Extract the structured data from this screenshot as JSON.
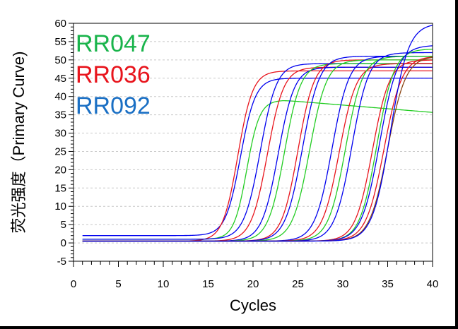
{
  "chart_data": {
    "type": "line",
    "xlabel": "Cycles",
    "ylabel": "荧光强度（Primary Curve)",
    "xlim": [
      0,
      40
    ],
    "ylim": [
      -5,
      60
    ],
    "xticks": [
      0,
      5,
      10,
      15,
      20,
      25,
      30,
      35,
      40
    ],
    "yticks": [
      -5,
      0,
      5,
      10,
      15,
      20,
      25,
      30,
      35,
      40,
      45,
      50,
      55,
      60
    ],
    "grid": "horizontal-dashed",
    "legend": {
      "placement": "top-left",
      "entries": [
        {
          "label": "RR047",
          "color": "#19b44b"
        },
        {
          "label": "RR036",
          "color": "#e8141c"
        },
        {
          "label": "RR092",
          "color": "#1a6fc4"
        }
      ]
    },
    "series": [
      {
        "color": "#0000ee",
        "baseline": 2.0,
        "plateau": 45,
        "midpoint": 18.6,
        "slope": 1.2,
        "drift": 0.0
      },
      {
        "color": "#e8141c",
        "baseline": 0.5,
        "plateau": 47,
        "midpoint": 18.3,
        "slope": 1.2,
        "drift": 0.0
      },
      {
        "color": "#22cc22",
        "baseline": 1.0,
        "plateau": 39,
        "midpoint": 19.3,
        "slope": 1.4,
        "drift": -0.2
      },
      {
        "color": "#0000ee",
        "baseline": 1.0,
        "plateau": 49,
        "midpoint": 20.8,
        "slope": 1.1,
        "drift": 0.0
      },
      {
        "color": "#e8141c",
        "baseline": 0.5,
        "plateau": 48,
        "midpoint": 21.6,
        "slope": 1.1,
        "drift": 0.0
      },
      {
        "color": "#0000ee",
        "baseline": 0.5,
        "plateau": 48,
        "midpoint": 22.8,
        "slope": 1.1,
        "drift": 0.0
      },
      {
        "color": "#22cc22",
        "baseline": 0.5,
        "plateau": 49,
        "midpoint": 23.5,
        "slope": 1.1,
        "drift": 0.0
      },
      {
        "color": "#e8141c",
        "baseline": 0.5,
        "plateau": 50,
        "midpoint": 25.0,
        "slope": 1.1,
        "drift": 0.0
      },
      {
        "color": "#0000ee",
        "baseline": 0.5,
        "plateau": 51,
        "midpoint": 25.5,
        "slope": 1.05,
        "drift": 0.0
      },
      {
        "color": "#22cc22",
        "baseline": 0.5,
        "plateau": 50,
        "midpoint": 26.3,
        "slope": 1.05,
        "drift": 0.0
      },
      {
        "color": "#0000ee",
        "baseline": 0.5,
        "plateau": 51,
        "midpoint": 28.8,
        "slope": 1.05,
        "drift": 0.0
      },
      {
        "color": "#e8141c",
        "baseline": 0.5,
        "plateau": 49,
        "midpoint": 29.6,
        "slope": 1.05,
        "drift": 0.0
      },
      {
        "color": "#22cc22",
        "baseline": 0.5,
        "plateau": 51,
        "midpoint": 30.3,
        "slope": 1.05,
        "drift": 0.0
      },
      {
        "color": "#0000ee",
        "baseline": 0.5,
        "plateau": 52,
        "midpoint": 31.0,
        "slope": 1.05,
        "drift": 0.0
      },
      {
        "color": "#e8141c",
        "baseline": 0.5,
        "plateau": 50,
        "midpoint": 33.3,
        "slope": 1.05,
        "drift": 0.0
      },
      {
        "color": "#22cc22",
        "baseline": 0.5,
        "plateau": 53,
        "midpoint": 33.8,
        "slope": 1.05,
        "drift": 0.0
      },
      {
        "color": "#0000ee",
        "baseline": 0.5,
        "plateau": 54,
        "midpoint": 34.1,
        "slope": 1.0,
        "drift": 0.0
      },
      {
        "color": "#e8141c",
        "baseline": 0.5,
        "plateau": 51,
        "midpoint": 34.6,
        "slope": 1.0,
        "drift": 0.0
      },
      {
        "color": "#8b4513",
        "baseline": 0.5,
        "plateau": 51,
        "midpoint": 35.0,
        "slope": 1.0,
        "drift": 0.0
      },
      {
        "color": "#0000ee",
        "baseline": 0.5,
        "plateau": 60,
        "midpoint": 35.3,
        "slope": 1.0,
        "drift": 0.0
      }
    ]
  }
}
